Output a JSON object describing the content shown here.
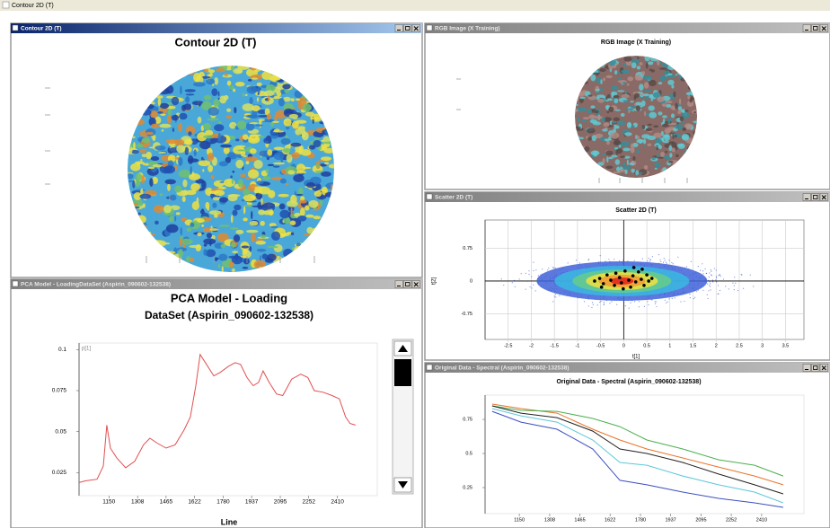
{
  "app_title": "Contour 2D (T)",
  "window_titles": [
    "Contour 2D (T)",
    "RGB Image (X Training)",
    "Scatter 2D (T)",
    "PCA Model - LoadingDataSet (Aspirin_090602-132538)",
    "Original Data - Spectral (Aspirin_090602-132538)"
  ],
  "chart_data": [
    {
      "type": "image",
      "title": "Contour 2D (T)"
    },
    {
      "type": "image",
      "title": "RGB Image (X Training)"
    },
    {
      "type": "scatter",
      "title": "Scatter 2D (T)",
      "x_label": "t[1]",
      "y_label": "t[2]",
      "color": "#000000",
      "x": [
        -0.63,
        -0.52,
        -0.44,
        -0.36,
        -0.28,
        -0.2,
        -0.17,
        -0.09,
        -0.05,
        0.03,
        0.11,
        0.15,
        0.2,
        0.26,
        0.32,
        0.38,
        0.44,
        0.5,
        0.54,
        0.61,
        -0.48,
        -0.01,
        0.22,
        0.4
      ],
      "values": [
        0,
        0.06,
        -0.06,
        0.14,
        0.02,
        -0.1,
        0.18,
        0.08,
        -0.04,
        0.23,
        0.02,
        -0.14,
        0.12,
        -0.02,
        0.21,
        0.04,
        -0.1,
        0.14,
        0,
        0.06,
        -0.14,
        -0.18,
        0.31,
        0.27
      ],
      "xlim": [
        -3.0,
        3.9
      ],
      "ylim": [
        -1.34,
        1.4
      ],
      "xticks": [
        -2.5,
        -2,
        -1.5,
        -1,
        -0.5,
        0,
        0.5,
        1,
        1.5,
        2,
        2.5,
        3,
        3.5
      ],
      "yticks": [
        0.75,
        0,
        -0.75
      ],
      "grid": true
    },
    {
      "type": "line",
      "title": "PCA Model - Loading",
      "subtitle": "DataSet (Aspirin_090602-132538)",
      "x_label": "Line",
      "y_label": "p[1]",
      "color": "#e05050",
      "x": [
        985,
        1020,
        1084,
        1119,
        1138,
        1158,
        1193,
        1242,
        1292,
        1341,
        1376,
        1416,
        1465,
        1515,
        1564,
        1599,
        1629,
        1653,
        1688,
        1728,
        1762,
        1812,
        1846,
        1876,
        1911,
        1945,
        1975,
        2000,
        2034,
        2074,
        2109,
        2158,
        2208,
        2247,
        2282,
        2331,
        2381,
        2421,
        2455,
        2480,
        2510
      ],
      "values": [
        0.019,
        0.02,
        0.021,
        0.029,
        0.054,
        0.04,
        0.034,
        0.028,
        0.032,
        0.042,
        0.046,
        0.043,
        0.04,
        0.042,
        0.051,
        0.059,
        0.078,
        0.097,
        0.091,
        0.084,
        0.086,
        0.09,
        0.092,
        0.091,
        0.083,
        0.078,
        0.08,
        0.087,
        0.08,
        0.073,
        0.072,
        0.082,
        0.085,
        0.083,
        0.075,
        0.074,
        0.072,
        0.07,
        0.059,
        0.055,
        0.054
      ],
      "xlim": [
        985,
        2630
      ],
      "ylim": [
        0.011,
        0.104
      ],
      "xticks": [
        1150,
        1308,
        1465,
        1622,
        1780,
        1937,
        2095,
        2252,
        2410
      ],
      "yticks": [
        0.1,
        0.075,
        0.05,
        0.025
      ]
    },
    {
      "type": "line",
      "title": "Original Data - Spectral (Aspirin_090602-132538)",
      "x": [
        1009,
        1159,
        1346,
        1532,
        1673,
        1813,
        2000,
        2186,
        2373,
        2522
      ],
      "series": [
        {
          "color": "#e8742a",
          "values": [
            0.862,
            0.829,
            0.796,
            0.678,
            0.599,
            0.533,
            0.467,
            0.401,
            0.335,
            0.27
          ]
        },
        {
          "color": "#4cb050",
          "values": [
            0.849,
            0.816,
            0.809,
            0.757,
            0.697,
            0.599,
            0.533,
            0.454,
            0.414,
            0.335
          ]
        },
        {
          "color": "#222222",
          "values": [
            0.849,
            0.796,
            0.763,
            0.664,
            0.533,
            0.5,
            0.434,
            0.349,
            0.27,
            0.204
          ]
        },
        {
          "color": "#5cc8d8",
          "values": [
            0.829,
            0.776,
            0.73,
            0.599,
            0.434,
            0.414,
            0.335,
            0.27,
            0.217,
            0.138
          ]
        },
        {
          "color": "#3a4fc0",
          "values": [
            0.809,
            0.73,
            0.678,
            0.533,
            0.303,
            0.27,
            0.217,
            0.171,
            0.138,
            0.105
          ]
        }
      ],
      "xlim": [
        972,
        2630
      ],
      "ylim": [
        0.059,
        0.928
      ],
      "xticks": [
        1150,
        1308,
        1465,
        1622,
        1780,
        1937,
        2095,
        2252,
        2410
      ],
      "yticks": [
        0.75,
        0.5,
        0.25
      ]
    }
  ]
}
